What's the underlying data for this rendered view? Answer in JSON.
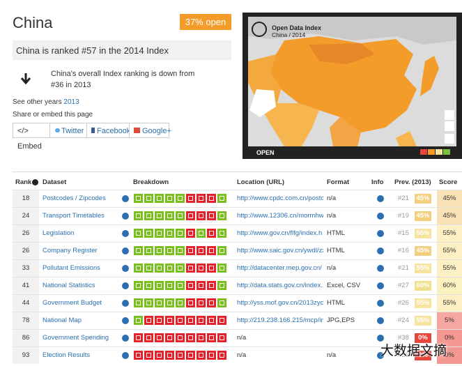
{
  "header": {
    "title": "China",
    "badge": "37% open"
  },
  "summary": {
    "rank_text": "China is ranked #57 in the 2014 Index",
    "trend_text": "China's overall Index ranking is down from #36 in 2013",
    "other_years_label": "See other years",
    "other_years_link": "2013",
    "share_label": "Share or embed this page",
    "buttons": [
      "</> Embed",
      "Twitter",
      "Facebook",
      "Google+"
    ]
  },
  "map": {
    "title": "Open Data Index",
    "subtitle": "China / 2014",
    "footer": "OPEN"
  },
  "table": {
    "columns": [
      "Rank",
      "Dataset",
      "Breakdown",
      "Location (URL)",
      "Format",
      "Info",
      "Prev. (2013)",
      "Score"
    ],
    "rows": [
      {
        "rank": "18",
        "dataset": "Postcodes / Zipcodes",
        "breakdown": [
          true,
          true,
          true,
          true,
          true,
          false,
          false,
          false,
          true
        ],
        "location": "http://www.cpdc.com.cn/postc",
        "format": "n/a",
        "prev_rank": "#21",
        "prev_score": "45%",
        "prev_color": "#f2cf7c",
        "score": "45%",
        "score_color": "#fbe2b4"
      },
      {
        "rank": "24",
        "dataset": "Transport Timetables",
        "breakdown": [
          true,
          true,
          true,
          true,
          true,
          false,
          false,
          false,
          true
        ],
        "location": "http://www.12306.cn/mormhw",
        "format": "n/a",
        "prev_rank": "#19",
        "prev_score": "45%",
        "prev_color": "#f2cf7c",
        "score": "45%",
        "score_color": "#fbe2b4"
      },
      {
        "rank": "26",
        "dataset": "Legislation",
        "breakdown": [
          true,
          true,
          true,
          true,
          true,
          false,
          true,
          false,
          true
        ],
        "location": "http://www.gov.cn/flfg/index.h",
        "format": "HTML",
        "prev_rank": "#15",
        "prev_score": "55%",
        "prev_color": "#f6e39e",
        "score": "55%",
        "score_color": "#fdf0c4"
      },
      {
        "rank": "26",
        "dataset": "Company Register",
        "breakdown": [
          true,
          true,
          true,
          true,
          true,
          false,
          false,
          false,
          true
        ],
        "location": "http://www.saic.gov.cn/ywdl/zx",
        "format": "HTML",
        "prev_rank": "#16",
        "prev_score": "45%",
        "prev_color": "#f2cf7c",
        "score": "55%",
        "score_color": "#fdf0c4"
      },
      {
        "rank": "33",
        "dataset": "Pollutant Emissions",
        "breakdown": [
          true,
          true,
          true,
          true,
          true,
          false,
          false,
          false,
          true
        ],
        "location": "http://datacenter.mep.gov.cn/",
        "format": "n/a",
        "prev_rank": "#21",
        "prev_score": "55%",
        "prev_color": "#f6e39e",
        "score": "55%",
        "score_color": "#fdf0c4"
      },
      {
        "rank": "41",
        "dataset": "National Statistics",
        "breakdown": [
          true,
          true,
          true,
          true,
          true,
          false,
          false,
          false,
          true
        ],
        "location": "http://data.stats.gov.cn/index...",
        "format": "Excel, CSV",
        "prev_rank": "#27",
        "prev_score": "60%",
        "prev_color": "#f0e08c",
        "score": "60%",
        "score_color": "#fbf2c0"
      },
      {
        "rank": "44",
        "dataset": "Government Budget",
        "breakdown": [
          true,
          true,
          true,
          true,
          true,
          false,
          false,
          false,
          true
        ],
        "location": "http://yss.mof.gov.cn/2013zycz",
        "format": "HTML",
        "prev_rank": "#26",
        "prev_score": "55%",
        "prev_color": "#f6e39e",
        "score": "55%",
        "score_color": "#fdf0c4"
      },
      {
        "rank": "78",
        "dataset": "National Map",
        "breakdown": [
          true,
          false,
          false,
          false,
          false,
          false,
          false,
          false,
          false
        ],
        "location": "http://219.238.166.215/mcp/in",
        "format": "JPG,EPS",
        "prev_rank": "#24",
        "prev_score": "55%",
        "prev_color": "#f6e39e",
        "score": "5%",
        "score_color": "#f6a7a2"
      },
      {
        "rank": "86",
        "dataset": "Government Spending",
        "breakdown": [
          false,
          false,
          false,
          false,
          false,
          false,
          false,
          false,
          false
        ],
        "location": "n/a",
        "format": "",
        "prev_rank": "#38",
        "prev_score": "0%",
        "prev_color": "#e8453c",
        "score": "0%",
        "score_color": "#f59791"
      },
      {
        "rank": "93",
        "dataset": "Election Results",
        "breakdown": [
          false,
          false,
          false,
          false,
          false,
          false,
          false,
          false,
          false
        ],
        "location": "n/a",
        "format": "n/a",
        "prev_rank": "#59",
        "prev_score": "0%",
        "prev_color": "#e8453c",
        "score": "0%",
        "score_color": "#f59791"
      }
    ]
  },
  "watermark": "大数据文摘"
}
